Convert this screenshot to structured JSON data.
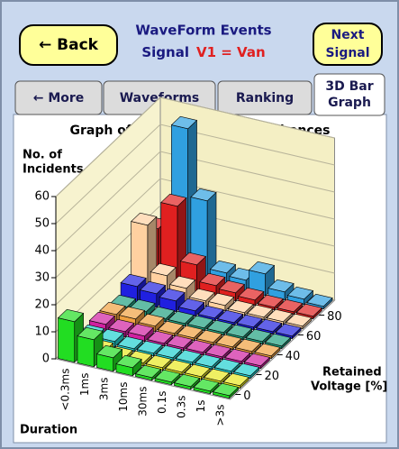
{
  "header": {
    "back": "← Back",
    "title": "WaveForm Events",
    "signal_label": "Signal",
    "signal": "V1 = Van",
    "next": [
      "Next",
      "Signal"
    ]
  },
  "tabs": [
    "← More",
    "Waveforms",
    "Ranking",
    [
      "3D Bar",
      "Graph"
    ]
  ],
  "chart_data": {
    "type": "bar3d",
    "title": "Graph of Undervoltage Disturbances",
    "y_label": [
      "No. of",
      "Incidents"
    ],
    "x_label": "Duration",
    "z_label": [
      "Retained",
      "Voltage [%]"
    ],
    "categories": [
      "<0.3ms",
      "1ms",
      "3ms",
      "10ms",
      "30ms",
      "0.1s",
      "0.3s",
      "1s",
      ">3s"
    ],
    "ylim": [
      0,
      60
    ],
    "yticks": [
      0,
      10,
      20,
      30,
      40,
      50,
      60
    ],
    "zlim": [
      0,
      90
    ],
    "zticks": [
      0,
      20,
      40,
      60,
      80
    ],
    "series": [
      {
        "z": 0,
        "color": "#22dd22",
        "values": [
          15,
          10,
          5,
          3,
          1,
          1,
          1,
          1,
          1
        ]
      },
      {
        "z": 10,
        "color": "#e8e820",
        "values": [
          2,
          2,
          1,
          1,
          1,
          1,
          1,
          1,
          1
        ]
      },
      {
        "z": 20,
        "color": "#20d0d0",
        "values": [
          2,
          2,
          1,
          1,
          1,
          1,
          1,
          1,
          1
        ]
      },
      {
        "z": 30,
        "color": "#d020a0",
        "values": [
          3,
          2,
          2,
          1,
          1,
          1,
          1,
          1,
          1
        ]
      },
      {
        "z": 40,
        "color": "#f0a040",
        "values": [
          3,
          3,
          2,
          1,
          1,
          1,
          1,
          1,
          1
        ]
      },
      {
        "z": 50,
        "color": "#20a080",
        "values": [
          2,
          2,
          1,
          1,
          1,
          1,
          1,
          1,
          1
        ]
      },
      {
        "z": 60,
        "color": "#2020e0",
        "values": [
          6,
          5,
          4,
          2,
          1,
          1,
          1,
          1,
          1
        ]
      },
      {
        "z": 70,
        "color": "#ffd0a0",
        "values": [
          25,
          8,
          5,
          2,
          2,
          1,
          1,
          1,
          1
        ]
      },
      {
        "z": 80,
        "color": "#e02020",
        "values": [
          20,
          30,
          10,
          4,
          3,
          2,
          1,
          1,
          1
        ]
      },
      {
        "z": 90,
        "color": "#30a0e0",
        "values": [
          10,
          55,
          30,
          5,
          4,
          8,
          3,
          2,
          1
        ]
      }
    ]
  }
}
